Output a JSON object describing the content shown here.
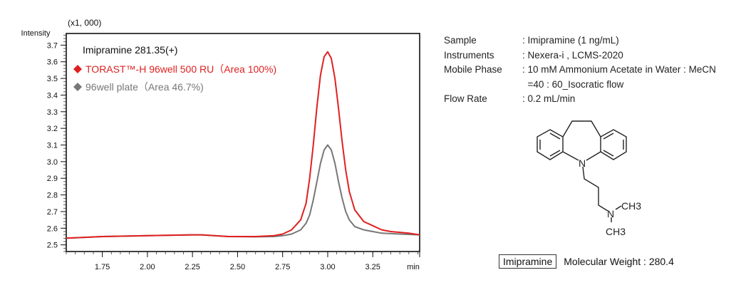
{
  "chart_data": {
    "type": "line",
    "title": "Imipramine 281.35(+)",
    "ylabel": "Intensity",
    "yscale_note": "(x1, 000)",
    "xunit": "min",
    "xlim": [
      1.55,
      3.51
    ],
    "ylim": [
      2.46,
      3.77
    ],
    "xticks": [
      1.75,
      2.0,
      2.25,
      2.5,
      2.75,
      3.0,
      3.25
    ],
    "xtick_labels": [
      "1.75",
      "2.00",
      "2.25",
      "2.50",
      "2.75",
      "3.00",
      "3.25"
    ],
    "yticks": [
      2.5,
      2.6,
      2.7,
      2.8,
      2.9,
      3.0,
      3.1,
      3.2,
      3.3,
      3.4,
      3.5,
      3.6,
      3.7
    ],
    "ytick_labels": [
      "2.5",
      "2.6",
      "2.7",
      "2.8",
      "2.9",
      "3.0",
      "3.1",
      "3.2",
      "3.3",
      "3.4",
      "3.5",
      "3.6",
      "3.7"
    ],
    "grid": false,
    "legend_placement": "top-left",
    "series": [
      {
        "name": "TORAST™-H 96well 500 RU（Area 100%)",
        "color": "#e02020",
        "x": [
          1.55,
          1.75,
          2.0,
          2.25,
          2.3,
          2.45,
          2.6,
          2.7,
          2.75,
          2.8,
          2.85,
          2.88,
          2.9,
          2.92,
          2.94,
          2.96,
          2.98,
          3.0,
          3.02,
          3.04,
          3.06,
          3.08,
          3.1,
          3.12,
          3.15,
          3.2,
          3.25,
          3.3,
          3.35,
          3.4,
          3.45,
          3.51
        ],
        "y": [
          2.54,
          2.55,
          2.555,
          2.56,
          2.56,
          2.55,
          2.55,
          2.555,
          2.565,
          2.59,
          2.65,
          2.75,
          2.9,
          3.1,
          3.33,
          3.52,
          3.63,
          3.66,
          3.62,
          3.5,
          3.32,
          3.12,
          2.95,
          2.82,
          2.71,
          2.64,
          2.615,
          2.59,
          2.58,
          2.575,
          2.57,
          2.56
        ]
      },
      {
        "name": "96well plate（Area 46.7%)",
        "color": "#777777",
        "x": [
          1.55,
          1.75,
          2.0,
          2.25,
          2.3,
          2.45,
          2.6,
          2.7,
          2.75,
          2.8,
          2.85,
          2.88,
          2.9,
          2.92,
          2.94,
          2.96,
          2.98,
          3.0,
          3.02,
          3.04,
          3.06,
          3.08,
          3.1,
          3.12,
          3.15,
          3.2,
          3.25,
          3.3,
          3.4,
          3.51
        ],
        "y": [
          2.54,
          2.55,
          2.555,
          2.56,
          2.56,
          2.55,
          2.548,
          2.55,
          2.555,
          2.565,
          2.59,
          2.63,
          2.68,
          2.77,
          2.88,
          2.99,
          3.07,
          3.1,
          3.07,
          2.99,
          2.88,
          2.78,
          2.7,
          2.65,
          2.61,
          2.59,
          2.58,
          2.57,
          2.565,
          2.56
        ]
      }
    ]
  },
  "info": {
    "rows": [
      {
        "key": "Sample",
        "value": ": Imipramine (1 ng/mL)"
      },
      {
        "key": "Instruments",
        "value": ": Nexera-i , LCMS-2020"
      },
      {
        "key": "Mobile Phase",
        "value": ": 10 mM Ammonium Acetate in Water : MeCN"
      },
      {
        "key": "",
        "value": "  =40 : 60_Isocratic flow"
      },
      {
        "key": "Flow Rate",
        "value": ": 0.2 mL/min"
      }
    ]
  },
  "structure": {
    "n_label": "N",
    "ch3_a": "CH3",
    "ch3_b": "CH3",
    "compound_name": "Imipramine",
    "molecular_weight": "Molecular Weight : 280.4"
  }
}
